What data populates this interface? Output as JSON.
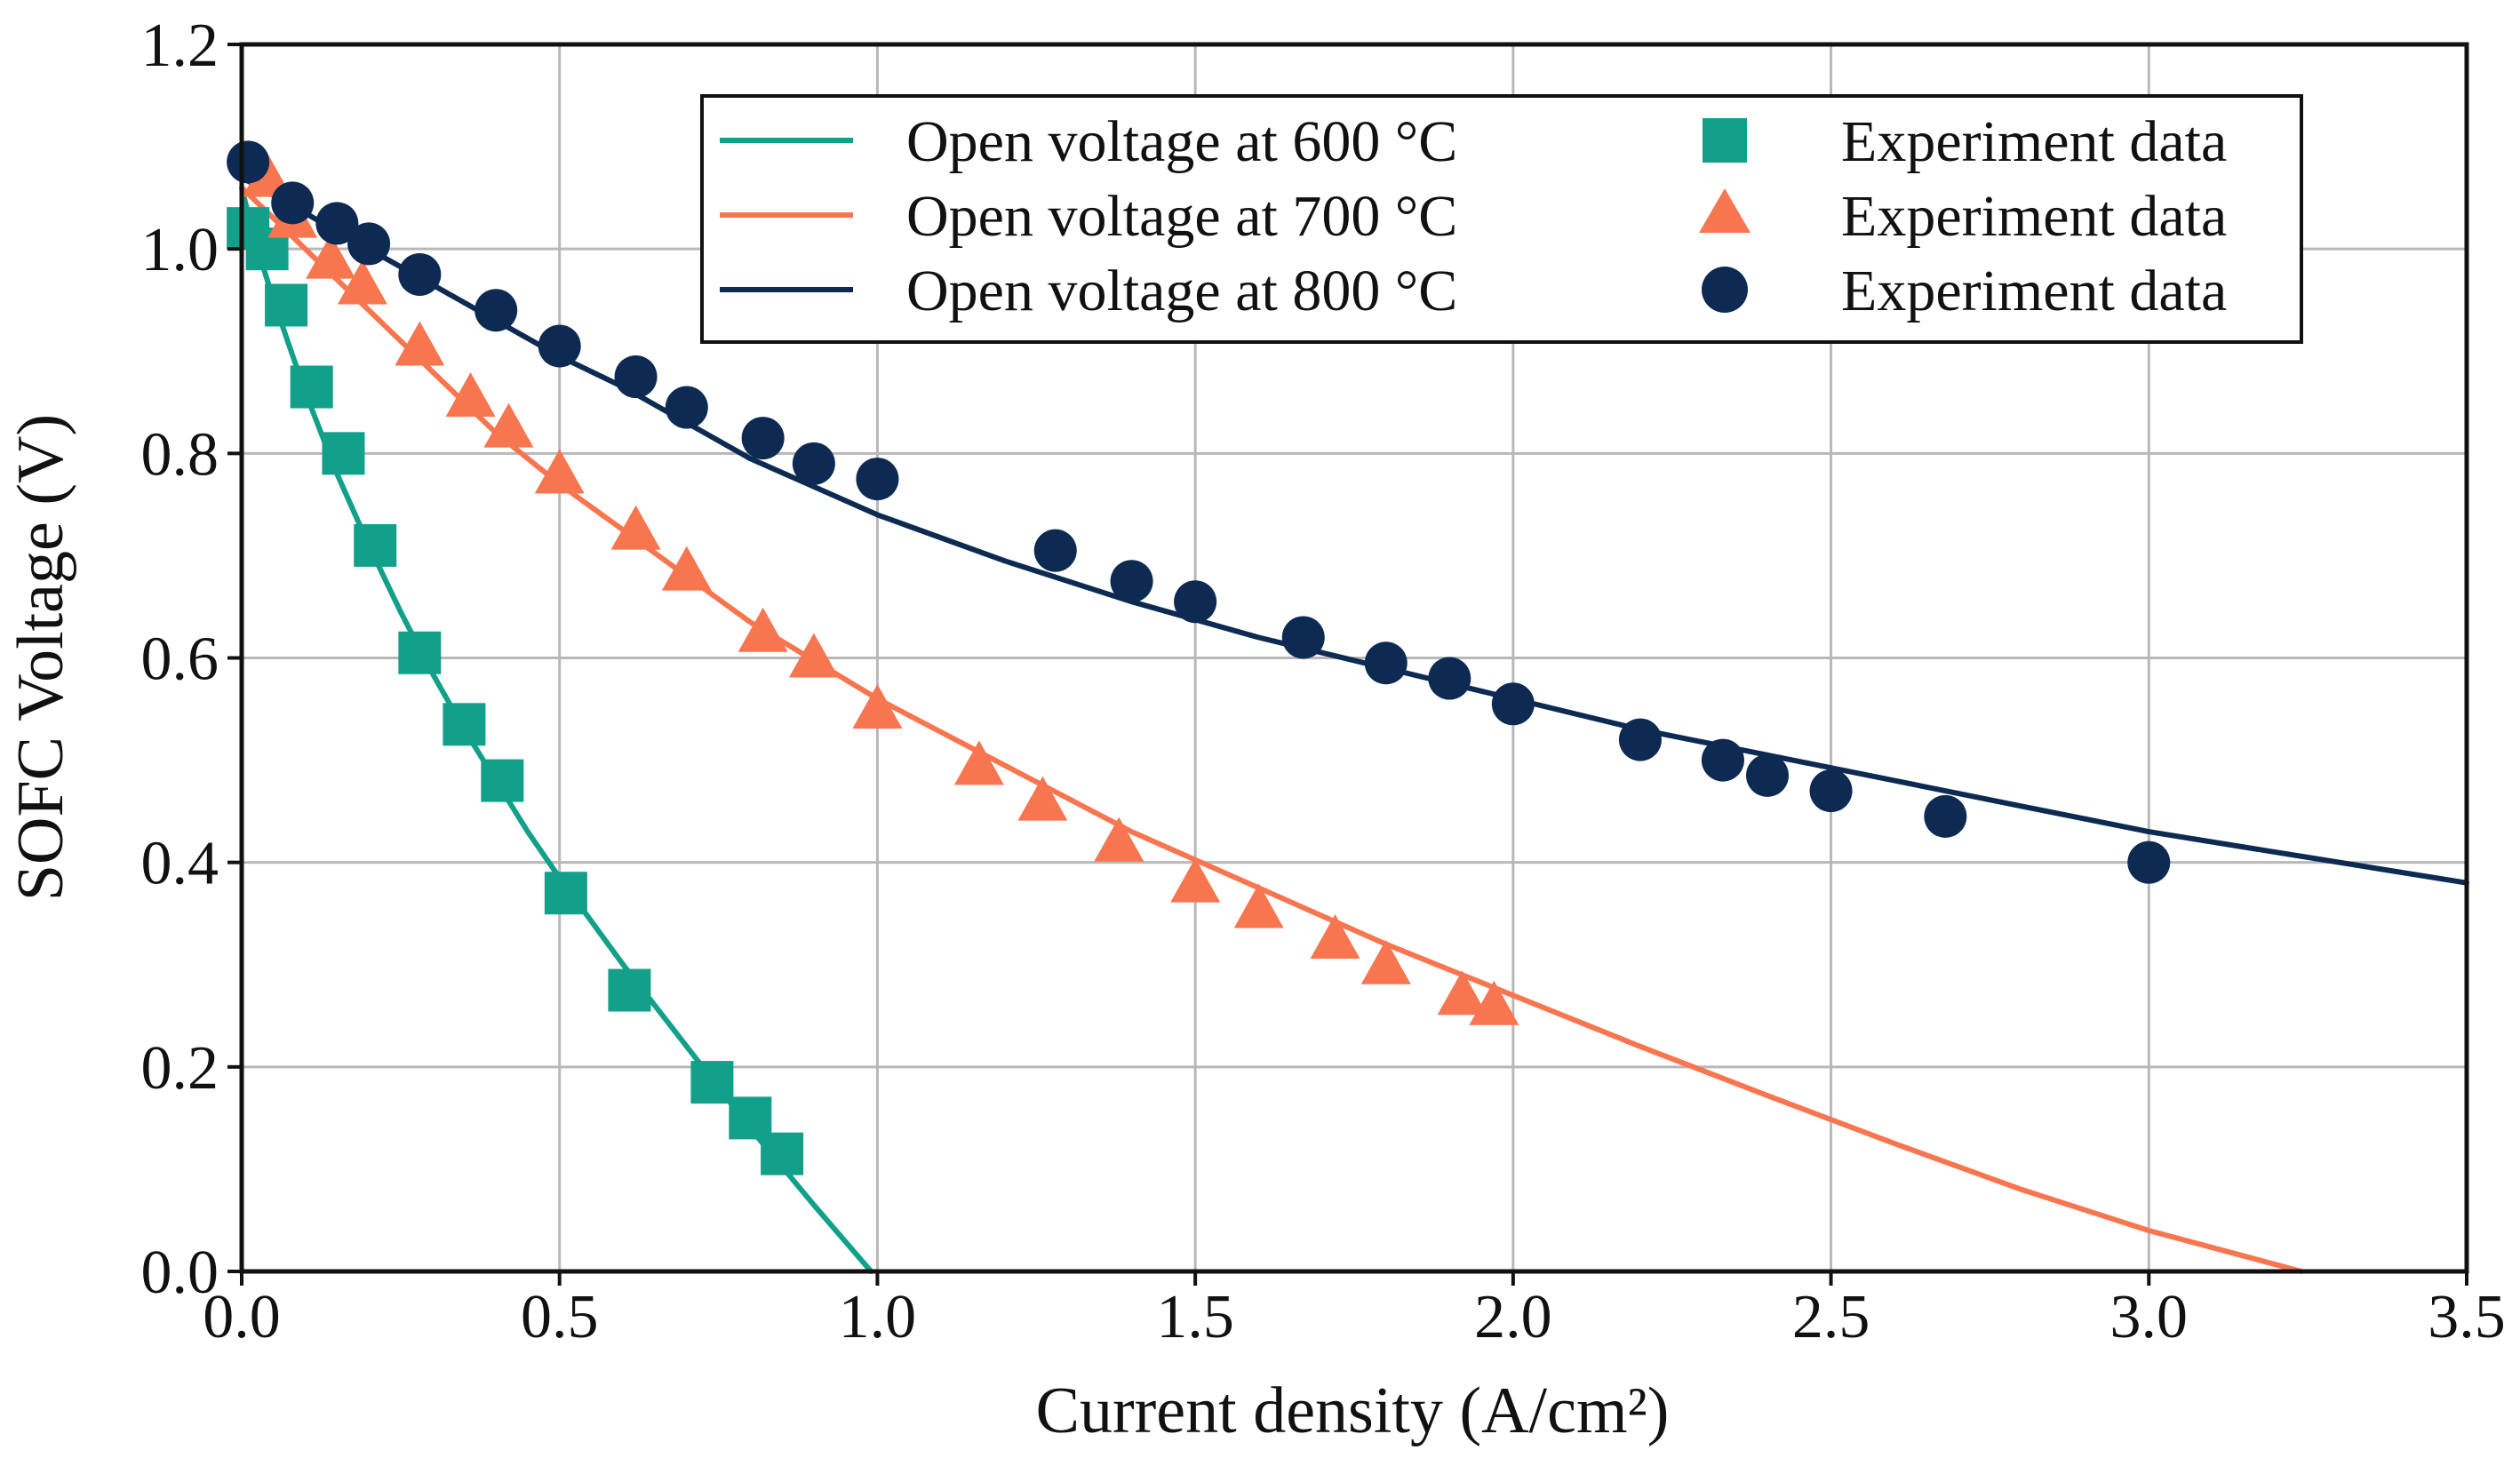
{
  "chart_data": {
    "type": "line",
    "title": "",
    "xlabel": "Current density (A/cm²)",
    "ylabel": "SOFC Voltage (V)",
    "xlim": [
      0,
      3.5
    ],
    "ylim": [
      0,
      1.2
    ],
    "xticks": [
      "0.0",
      "0.5",
      "1.0",
      "1.5",
      "2.0",
      "2.5",
      "3.0",
      "3.5"
    ],
    "yticks": [
      "0.0",
      "0.2",
      "0.4",
      "0.6",
      "0.8",
      "1.0",
      "1.2"
    ],
    "grid": true,
    "legend_position": "top-right",
    "model_lines": [
      {
        "name": "Open voltage at 600 °C",
        "color": "#12a08a",
        "x": [
          0.0,
          0.02,
          0.05,
          0.1,
          0.15,
          0.2,
          0.25,
          0.3,
          0.35,
          0.4,
          0.45,
          0.5,
          0.6,
          0.7,
          0.8,
          0.9,
          0.99
        ],
        "y": [
          1.06,
          1.01,
          0.95,
          0.86,
          0.78,
          0.71,
          0.645,
          0.585,
          0.53,
          0.48,
          0.43,
          0.385,
          0.3,
          0.22,
          0.14,
          0.065,
          0.0
        ]
      },
      {
        "name": "Open voltage at 700 °C",
        "color": "#f7764f",
        "x": [
          0.0,
          0.05,
          0.1,
          0.2,
          0.3,
          0.4,
          0.5,
          0.6,
          0.8,
          1.0,
          1.2,
          1.4,
          1.6,
          1.8,
          2.0,
          2.2,
          2.4,
          2.6,
          2.8,
          3.0,
          3.24
        ],
        "y": [
          1.06,
          1.03,
          1.0,
          0.94,
          0.88,
          0.82,
          0.77,
          0.725,
          0.635,
          0.56,
          0.495,
          0.43,
          0.375,
          0.32,
          0.27,
          0.22,
          0.172,
          0.125,
          0.08,
          0.04,
          0.0
        ]
      },
      {
        "name": "Open voltage at 800 °C",
        "color": "#0d2a52",
        "x": [
          0.0,
          0.1,
          0.2,
          0.3,
          0.4,
          0.5,
          0.6,
          0.8,
          1.0,
          1.2,
          1.4,
          1.6,
          1.8,
          2.0,
          2.2,
          2.4,
          2.6,
          2.8,
          3.0,
          3.2,
          3.5
        ],
        "y": [
          1.07,
          1.035,
          1.0,
          0.965,
          0.93,
          0.895,
          0.865,
          0.795,
          0.74,
          0.695,
          0.655,
          0.62,
          0.59,
          0.56,
          0.53,
          0.505,
          0.48,
          0.455,
          0.43,
          0.41,
          0.38
        ]
      }
    ],
    "experiment_series": [
      {
        "name": "Experiment data",
        "marker": "square",
        "color": "#12a08a",
        "x": [
          0.01,
          0.04,
          0.07,
          0.11,
          0.16,
          0.21,
          0.28,
          0.35,
          0.41,
          0.51,
          0.61,
          0.74,
          0.8,
          0.85
        ],
        "y": [
          1.02,
          1.0,
          0.945,
          0.865,
          0.8,
          0.71,
          0.605,
          0.535,
          0.48,
          0.37,
          0.275,
          0.185,
          0.15,
          0.115
        ]
      },
      {
        "name": "Experiment data",
        "marker": "triangle",
        "color": "#f7764f",
        "x": [
          0.04,
          0.08,
          0.14,
          0.19,
          0.28,
          0.36,
          0.42,
          0.5,
          0.62,
          0.7,
          0.82,
          0.9,
          1.0,
          1.16,
          1.26,
          1.38,
          1.5,
          1.6,
          1.72,
          1.8,
          1.92,
          1.97
        ],
        "y": [
          1.07,
          1.03,
          0.99,
          0.965,
          0.905,
          0.855,
          0.825,
          0.78,
          0.725,
          0.685,
          0.625,
          0.6,
          0.55,
          0.495,
          0.46,
          0.42,
          0.38,
          0.355,
          0.325,
          0.3,
          0.27,
          0.26
        ]
      },
      {
        "name": "Experiment data",
        "marker": "circle",
        "color": "#0d2a52",
        "x": [
          0.01,
          0.08,
          0.15,
          0.2,
          0.28,
          0.4,
          0.5,
          0.62,
          0.7,
          0.82,
          0.9,
          1.0,
          1.28,
          1.4,
          1.5,
          1.67,
          1.8,
          1.9,
          2.0,
          2.2,
          2.33,
          2.4,
          2.5,
          2.68,
          3.0
        ],
        "y": [
          1.085,
          1.045,
          1.025,
          1.005,
          0.975,
          0.94,
          0.905,
          0.875,
          0.845,
          0.815,
          0.79,
          0.775,
          0.705,
          0.675,
          0.655,
          0.62,
          0.595,
          0.58,
          0.555,
          0.52,
          0.5,
          0.485,
          0.47,
          0.445,
          0.4
        ]
      }
    ]
  }
}
